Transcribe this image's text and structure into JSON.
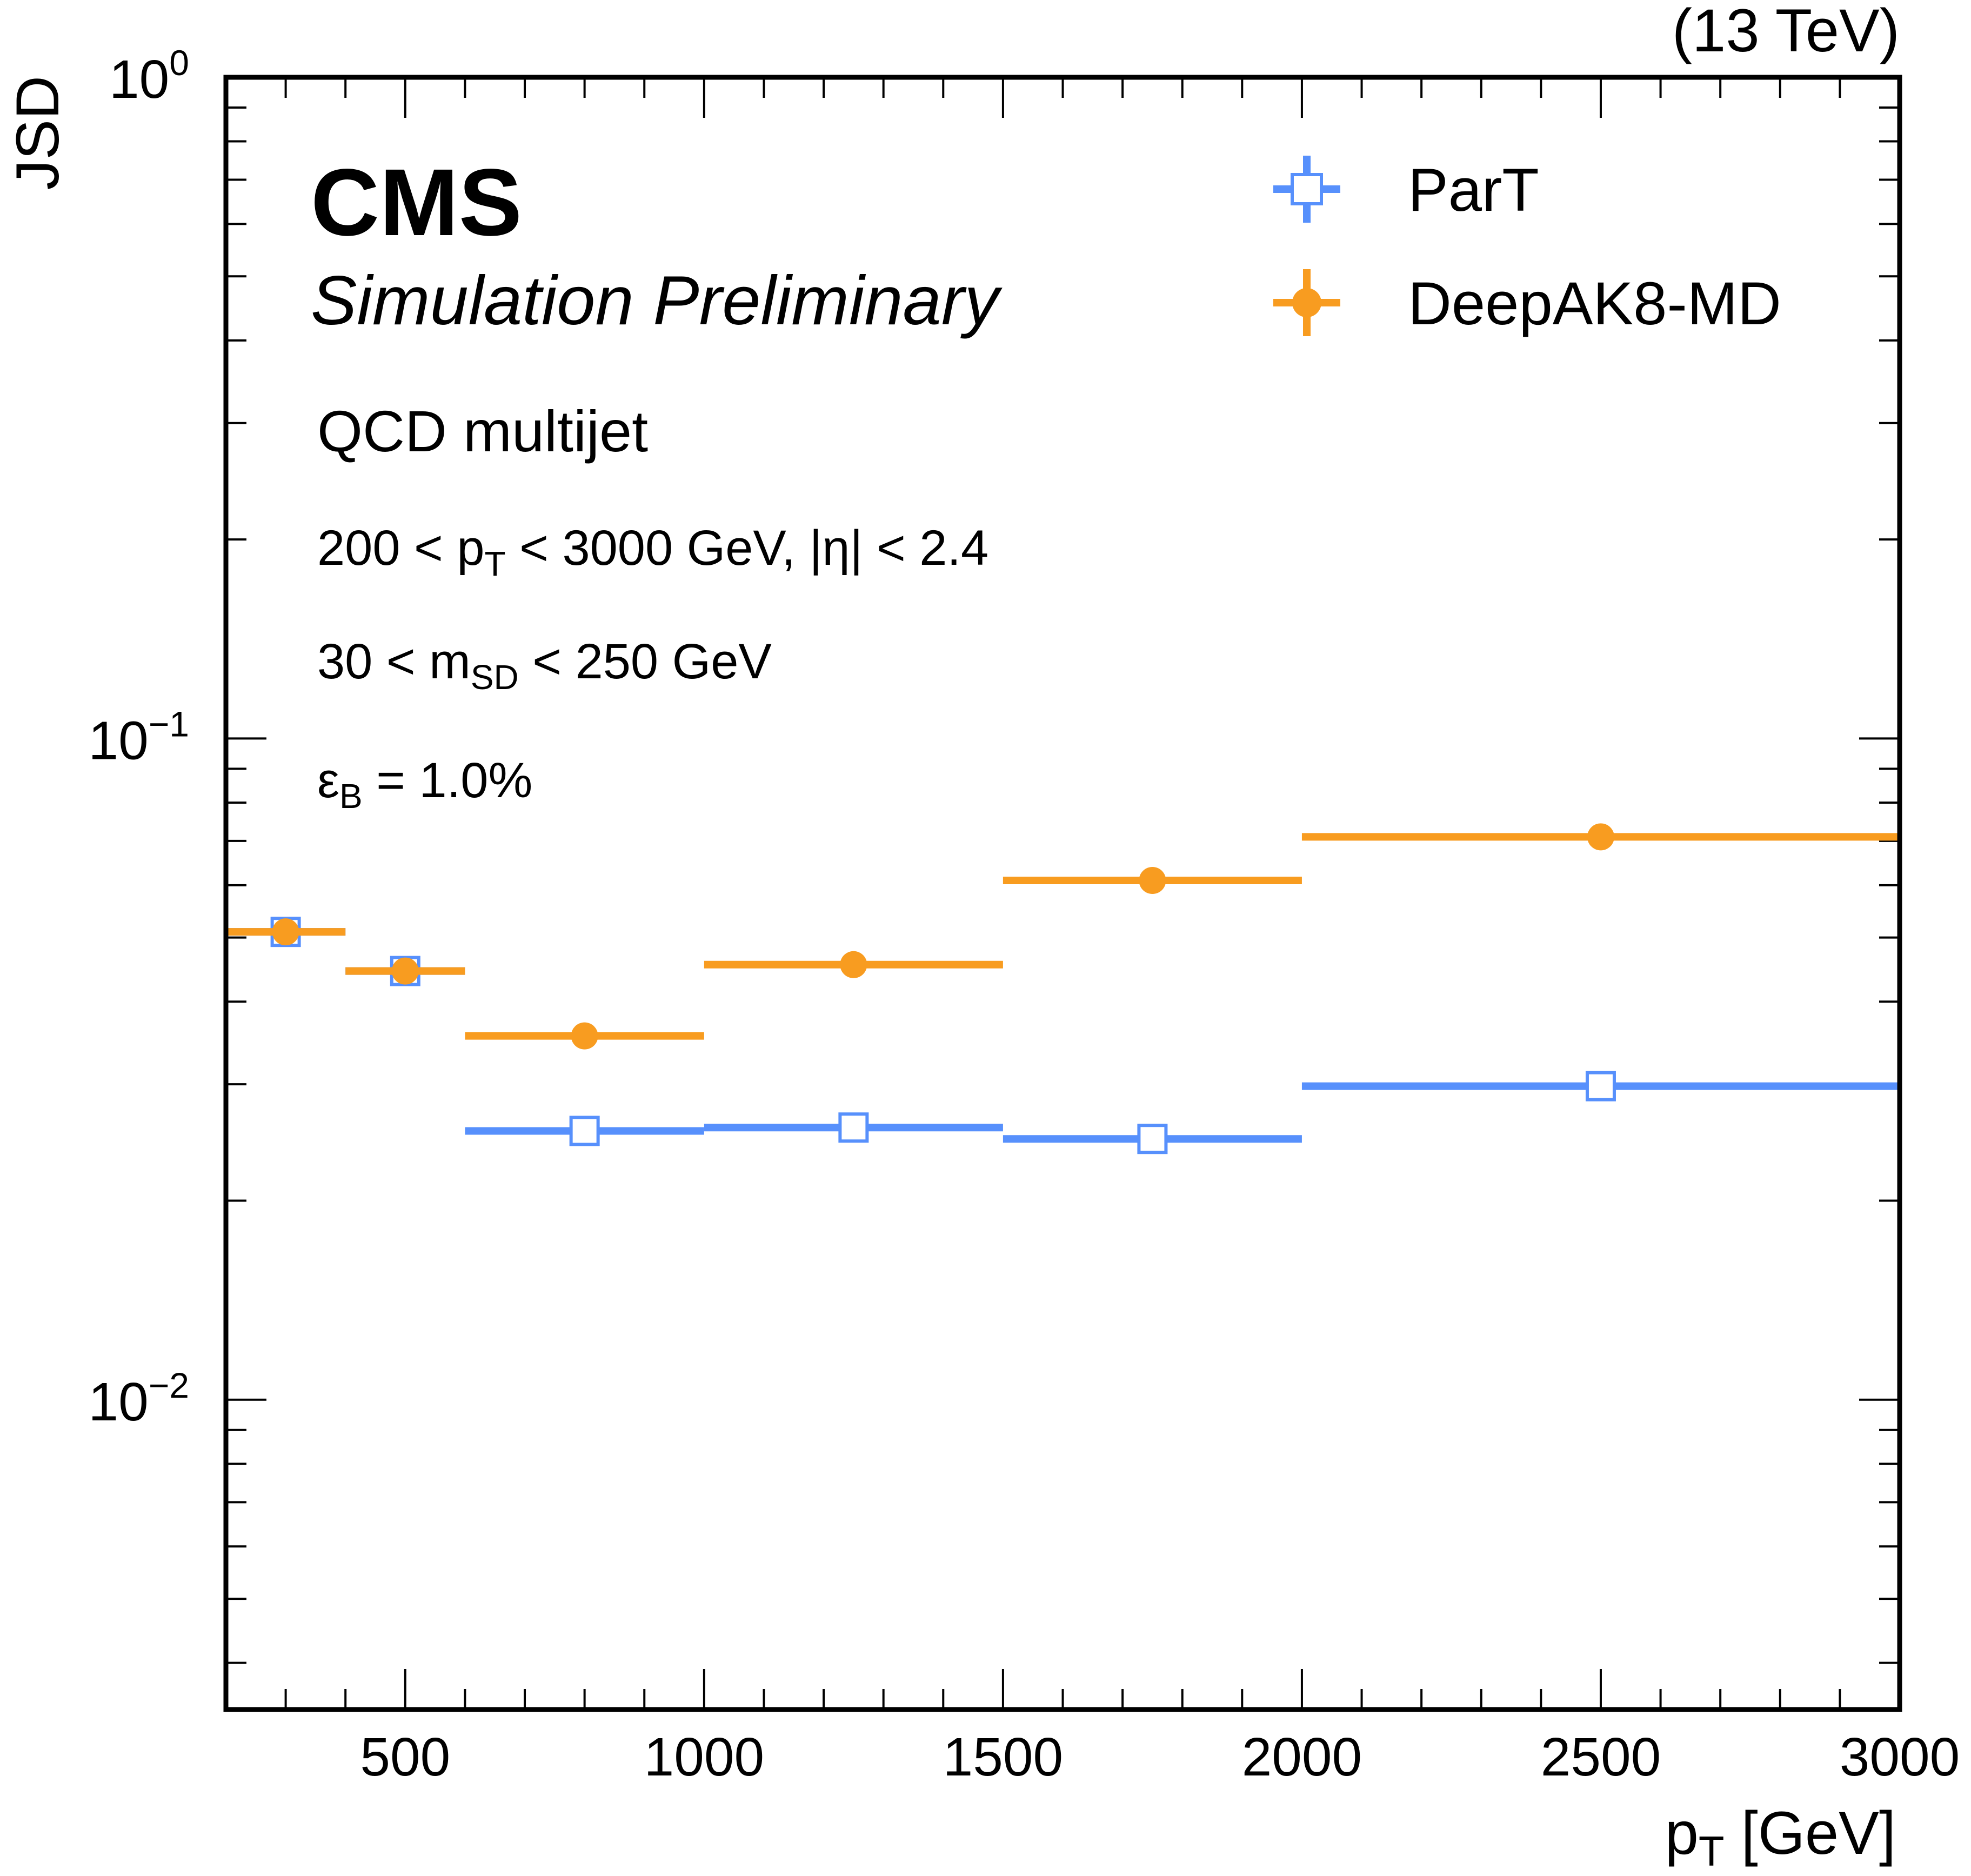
{
  "chart_data": {
    "type": "scatter",
    "energy_label": "(13 TeV)",
    "experiment": "CMS",
    "status": "Simulation Preliminary",
    "process": "QCD multijet",
    "selection_pt": "200 < p_T < 3000 GeV, |η| < 2.4",
    "selection_pt_parts": {
      "pre": "200 < p",
      "sub": "T",
      "post": " < 3000 GeV, |η| < 2.4"
    },
    "selection_msd": "30 < m_SD < 250 GeV",
    "selection_msd_parts": {
      "pre": "30 < m",
      "sub": "SD",
      "post": " < 250 GeV"
    },
    "working_point": "ε_B = 1.0%",
    "working_point_parts": {
      "pre": "ε",
      "sub": "B",
      "post": " = 1.0%"
    },
    "xlabel": "p_T [GeV]",
    "xlabel_parts": {
      "pre": "p",
      "sub": "T",
      "post": " [GeV]"
    },
    "ylabel": "JSD",
    "xlim": [
      200,
      3000
    ],
    "ylim": [
      0.0034,
      1.0
    ],
    "yscale": "log",
    "x_ticks": [
      500,
      1000,
      1500,
      2000,
      2500,
      3000
    ],
    "y_ticks": [
      {
        "base": "10",
        "exp": "0",
        "value": 1.0
      },
      {
        "base": "10",
        "exp": "−1",
        "value": 0.1
      },
      {
        "base": "10",
        "exp": "−2",
        "value": 0.01
      }
    ],
    "legend_position": "top-right",
    "bins": [
      [
        200,
        400
      ],
      [
        400,
        600
      ],
      [
        600,
        1000
      ],
      [
        1000,
        1500
      ],
      [
        1500,
        2000
      ],
      [
        2000,
        3000
      ]
    ],
    "series": [
      {
        "name": "ParT",
        "color": "#5790fc",
        "marker": "open-square",
        "x": [
          300,
          500,
          800,
          1250,
          1750,
          2500
        ],
        "y": [
          0.051,
          0.0445,
          0.0255,
          0.0258,
          0.0248,
          0.0298
        ]
      },
      {
        "name": "DeepAK8-MD",
        "color": "#f89c20",
        "marker": "filled-circle",
        "x": [
          300,
          500,
          800,
          1250,
          1750,
          2500
        ],
        "y": [
          0.051,
          0.0445,
          0.0355,
          0.0455,
          0.061,
          0.071
        ]
      }
    ]
  }
}
